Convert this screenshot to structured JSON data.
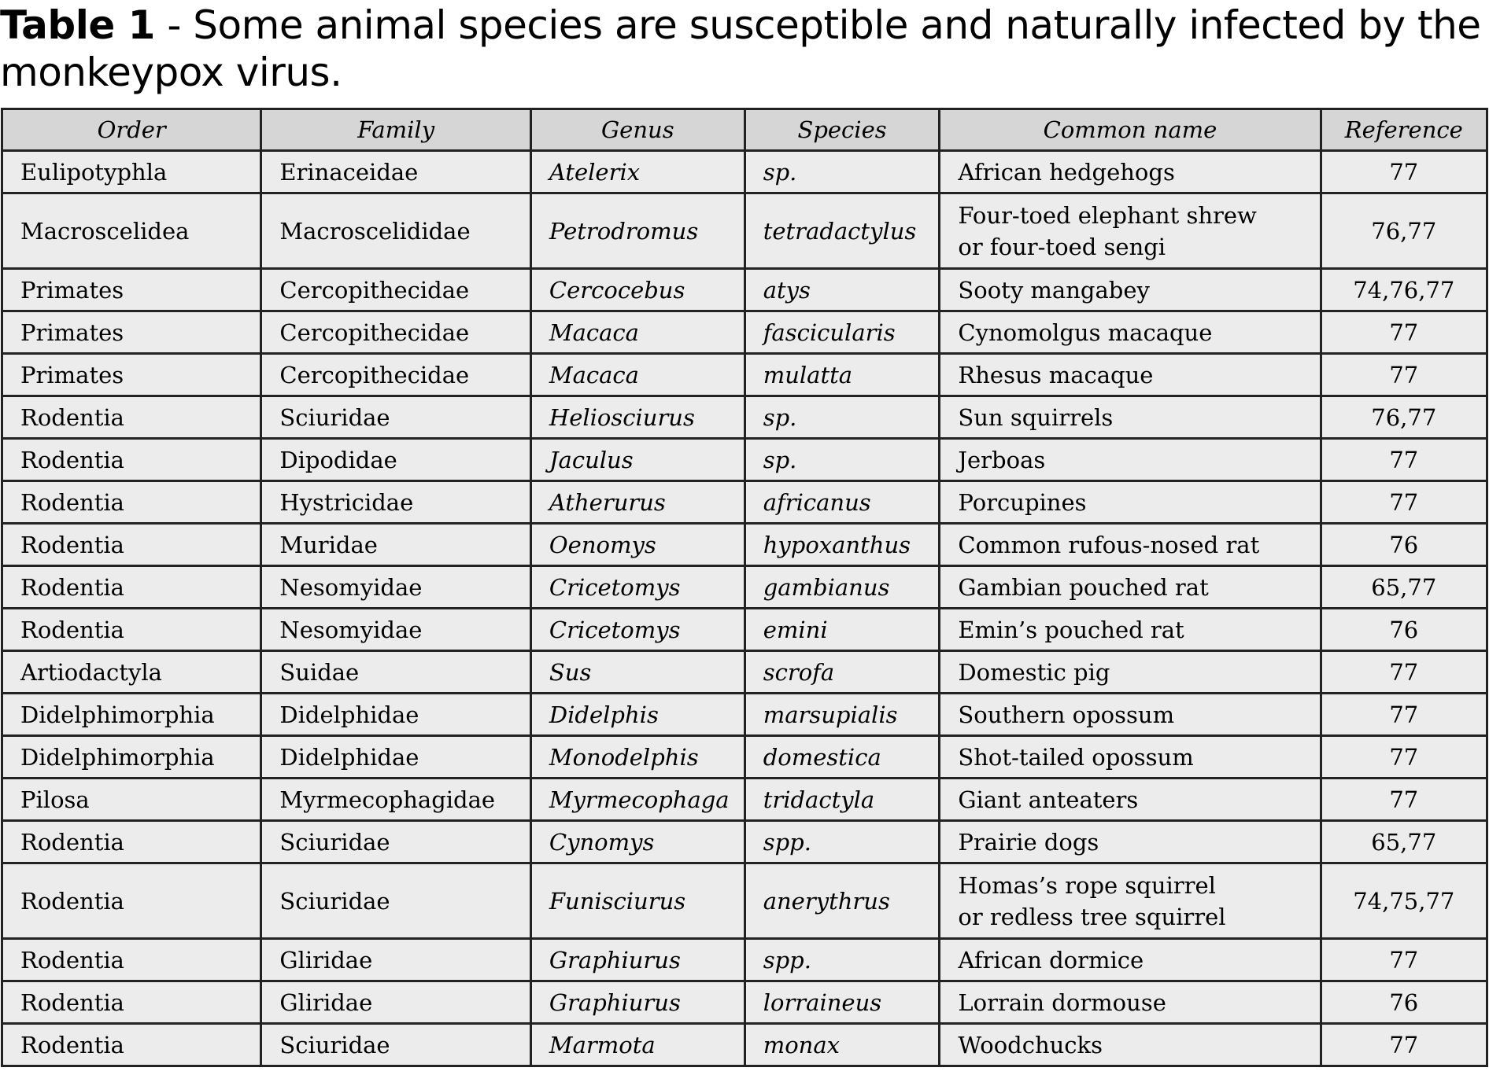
{
  "title": {
    "label": "Table 1",
    "text": " - Some animal species are susceptible and naturally infected by the monkeypox virus."
  },
  "table": {
    "headers": [
      "Order",
      "Family",
      "Genus",
      "Species",
      "Common name",
      "Reference"
    ],
    "rows": [
      [
        "Eulipotyphla",
        "Erinaceidae",
        "Atelerix",
        "sp.",
        "African hedgehogs",
        "77"
      ],
      [
        "Macroscelidea",
        "Macroscelididae",
        "Petrodromus",
        "tetradactylus",
        "Four-toed elephant shrew\nor four-toed sengi",
        "76,77"
      ],
      [
        "Primates",
        "Cercopithecidae",
        "Cercocebus",
        "atys",
        "Sooty mangabey",
        "74,76,77"
      ],
      [
        "Primates",
        "Cercopithecidae",
        "Macaca",
        "fascicularis",
        "Cynomolgus macaque",
        "77"
      ],
      [
        "Primates",
        "Cercopithecidae",
        "Macaca",
        "mulatta",
        "Rhesus macaque",
        "77"
      ],
      [
        "Rodentia",
        "Sciuridae",
        "Heliosciurus",
        "sp.",
        "Sun squirrels",
        "76,77"
      ],
      [
        "Rodentia",
        "Dipodidae",
        "Jaculus",
        "sp.",
        "Jerboas",
        "77"
      ],
      [
        "Rodentia",
        "Hystricidae",
        "Atherurus",
        "africanus",
        "Porcupines",
        "77"
      ],
      [
        "Rodentia",
        "Muridae",
        "Oenomys",
        "hypoxanthus",
        "Common rufous-nosed rat",
        "76"
      ],
      [
        "Rodentia",
        "Nesomyidae",
        "Cricetomys",
        "gambianus",
        "Gambian pouched rat",
        "65,77"
      ],
      [
        "Rodentia",
        "Nesomyidae",
        "Cricetomys",
        "emini",
        "Emin’s pouched rat",
        "76"
      ],
      [
        "Artiodactyla",
        "Suidae",
        "Sus",
        "scrofa",
        "Domestic pig",
        "77"
      ],
      [
        "Didelphimorphia",
        "Didelphidae",
        "Didelphis",
        "marsupialis",
        "Southern opossum",
        "77"
      ],
      [
        "Didelphimorphia",
        "Didelphidae",
        "Monodelphis",
        "domestica",
        "Shot-tailed opossum",
        "77"
      ],
      [
        "Pilosa",
        "Myrmecophagidae",
        "Myrmecophaga",
        "tridactyla",
        "Giant anteaters",
        "77"
      ],
      [
        "Rodentia",
        "Sciuridae",
        "Cynomys",
        "spp.",
        "Prairie dogs",
        "65,77"
      ],
      [
        "Rodentia",
        "Sciuridae",
        "Funisciurus",
        "anerythrus",
        "Homas’s rope squirrel\nor redless tree squirrel",
        "74,75,77"
      ],
      [
        "Rodentia",
        "Gliridae",
        "Graphiurus",
        "spp.",
        "African dormice",
        "77"
      ],
      [
        "Rodentia",
        "Gliridae",
        "Graphiurus",
        "lorraineus",
        "Lorrain dormouse",
        "76"
      ],
      [
        "Rodentia",
        "Sciuridae",
        "Marmota",
        "monax",
        "Woodchucks",
        "77"
      ]
    ]
  }
}
